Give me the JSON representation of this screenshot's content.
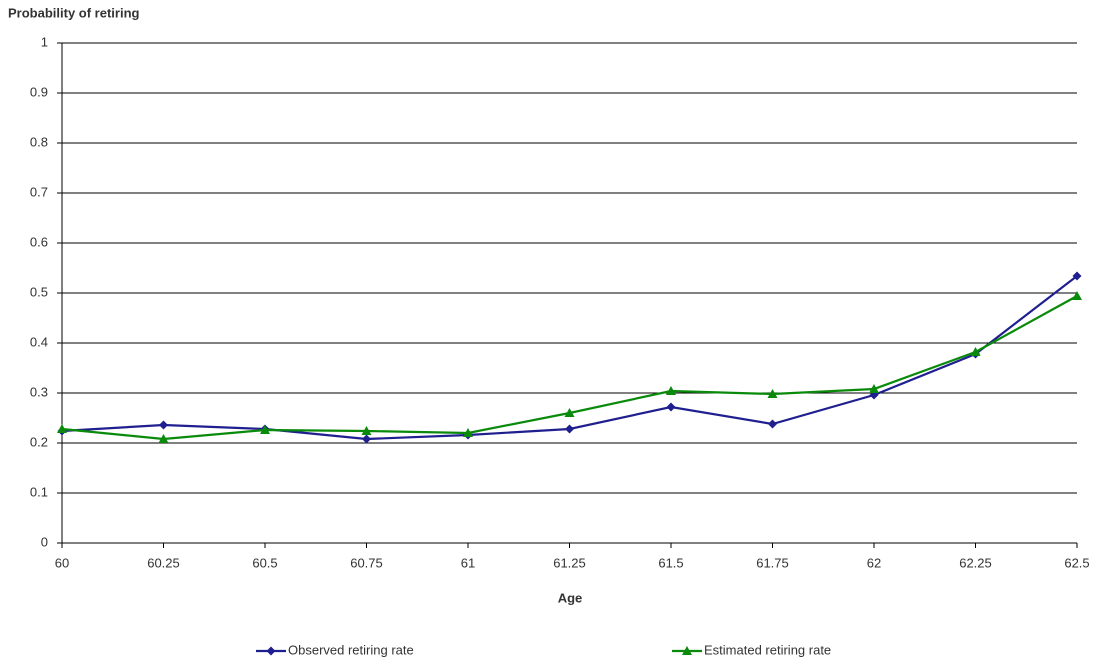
{
  "chart_data": {
    "type": "line",
    "title": "Probability of retiring",
    "x_label": "Age",
    "x": [
      60,
      60.25,
      60.5,
      60.75,
      61,
      61.25,
      61.5,
      61.75,
      62,
      62.25,
      62.5
    ],
    "series": [
      {
        "name": "Observed retiring rate",
        "color": "#1f1f8f",
        "marker": "diamond",
        "values": [
          0.224,
          0.236,
          0.228,
          0.208,
          0.216,
          0.228,
          0.272,
          0.238,
          0.296,
          0.378,
          0.534
        ]
      },
      {
        "name": "Estimated retiring rate",
        "color": "#0a8a0a",
        "marker": "triangle",
        "values": [
          0.228,
          0.208,
          0.226,
          0.224,
          0.22,
          0.26,
          0.304,
          0.298,
          0.308,
          0.382,
          0.494
        ]
      }
    ],
    "xlim": [
      60,
      62.5
    ],
    "xticks": [
      60,
      60.25,
      60.5,
      60.75,
      61,
      61.25,
      61.5,
      61.75,
      62,
      62.25,
      62.5
    ],
    "ylim": [
      0,
      1
    ],
    "yticks": [
      0,
      0.1,
      0.2,
      0.3,
      0.4,
      0.5,
      0.6,
      0.7,
      0.8,
      0.9,
      1
    ],
    "grid": true,
    "legend": "bottom"
  }
}
